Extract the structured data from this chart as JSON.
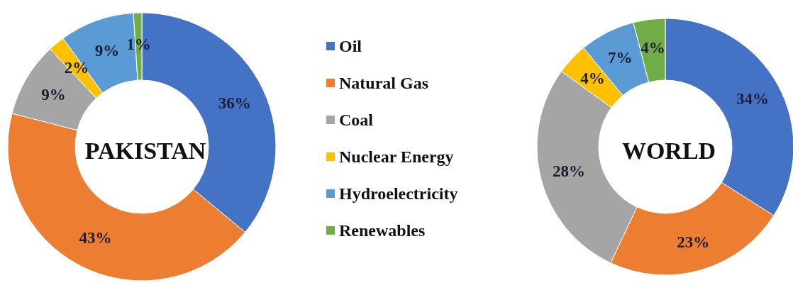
{
  "chart_data": {
    "type": "donut",
    "categories": [
      "Oil",
      "Natural Gas",
      "Coal",
      "Nuclear Energy",
      "Hydroelectricity",
      "Renewables"
    ],
    "colors": [
      "#4472c4",
      "#ed7d31",
      "#a5a5a5",
      "#ffc000",
      "#5b9bd5",
      "#70ad47"
    ],
    "series": [
      {
        "name": "PAKISTAN",
        "values": [
          36,
          43,
          9,
          2,
          9,
          1
        ],
        "value_labels": [
          "36%",
          "43%",
          "9%",
          "2%",
          "9%",
          "1%"
        ]
      },
      {
        "name": "WORLD",
        "values": [
          34,
          23,
          28,
          4,
          7,
          4
        ],
        "value_labels": [
          "34%",
          "23%",
          "28%",
          "4%",
          "7%",
          "4%"
        ]
      }
    ],
    "legend": "center"
  }
}
